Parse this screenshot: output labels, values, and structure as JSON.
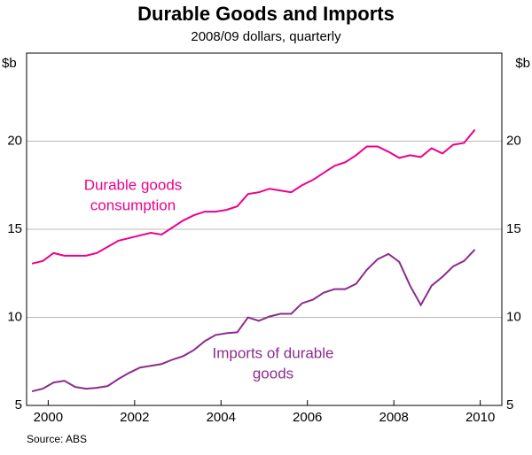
{
  "chart_data": {
    "type": "line",
    "title": "Durable Goods and Imports",
    "subtitle": "2008/09 dollars, quarterly",
    "y_label": "$b",
    "y2_label": "$b",
    "source": "Source: ABS",
    "x": [
      2000.125,
      2000.375,
      2000.625,
      2000.875,
      2001.125,
      2001.375,
      2001.625,
      2001.875,
      2002.125,
      2002.375,
      2002.625,
      2002.875,
      2003.125,
      2003.375,
      2003.625,
      2003.875,
      2004.125,
      2004.375,
      2004.625,
      2004.875,
      2005.125,
      2005.375,
      2005.625,
      2005.875,
      2006.125,
      2006.375,
      2006.625,
      2006.875,
      2007.125,
      2007.375,
      2007.625,
      2007.875,
      2008.125,
      2008.375,
      2008.625,
      2008.875,
      2009.125,
      2009.375,
      2009.625,
      2009.875,
      2010.125,
      2010.375
    ],
    "series": [
      {
        "name": "Durable goods consumption",
        "color": "#ec008c",
        "label_lines": [
          "Durable goods",
          "consumption"
        ],
        "values": [
          13.05,
          13.2,
          13.65,
          13.5,
          13.5,
          13.5,
          13.65,
          14.0,
          14.35,
          14.5,
          14.65,
          14.8,
          14.7,
          15.1,
          15.5,
          15.8,
          16.0,
          16.0,
          16.1,
          16.3,
          17.0,
          17.1,
          17.3,
          17.2,
          17.1,
          17.5,
          17.8,
          18.2,
          18.6,
          18.8,
          19.2,
          19.7,
          19.7,
          19.4,
          19.05,
          19.2,
          19.1,
          19.6,
          19.3,
          19.8,
          19.9,
          20.65
        ]
      },
      {
        "name": "Imports of durable goods",
        "color": "#8b2c8c",
        "label_lines": [
          "Imports of durable",
          "goods"
        ],
        "values": [
          5.8,
          5.95,
          6.3,
          6.4,
          6.05,
          5.95,
          6.0,
          6.1,
          6.5,
          6.85,
          7.15,
          7.25,
          7.35,
          7.6,
          7.8,
          8.15,
          8.65,
          9.0,
          9.1,
          9.15,
          10.0,
          9.8,
          10.05,
          10.2,
          10.2,
          10.8,
          11.0,
          11.4,
          11.6,
          11.6,
          11.9,
          12.7,
          13.3,
          13.6,
          13.15,
          11.8,
          10.7,
          11.8,
          12.3,
          12.9,
          13.2,
          13.85
        ]
      }
    ],
    "xlim": [
      2000,
      2011
    ],
    "xticks": [
      {
        "value": 2000.5,
        "label": "2000"
      },
      {
        "value": 2002.5,
        "label": "2002"
      },
      {
        "value": 2004.5,
        "label": "2004"
      },
      {
        "value": 2006.5,
        "label": "2006"
      },
      {
        "value": 2008.5,
        "label": "2008"
      },
      {
        "value": 2010.5,
        "label": "2010"
      }
    ],
    "ylim": [
      5,
      25
    ],
    "yticks": [
      5,
      10,
      15,
      20
    ],
    "grid": true
  }
}
